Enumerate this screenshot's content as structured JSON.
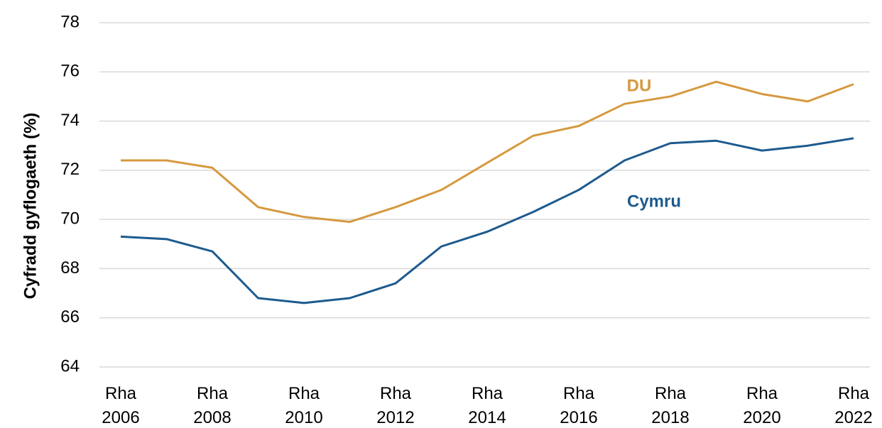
{
  "chart_data": {
    "type": "line",
    "y_label": "Cyfradd gyflogaeth (%)",
    "categories": [
      "Rha 2006",
      null,
      "Rha 2008",
      null,
      "Rha 2010",
      null,
      "Rha 2012",
      null,
      "Rha 2014",
      null,
      "Rha 2016",
      null,
      "Rha 2018",
      null,
      "Rha 2020",
      null,
      "Rha 2022"
    ],
    "series": [
      {
        "name": "DU",
        "color": "#d6993f",
        "values": [
          72.4,
          72.4,
          72.1,
          70.5,
          70.1,
          69.9,
          70.5,
          71.2,
          72.3,
          73.4,
          73.8,
          74.7,
          75.0,
          75.6,
          75.1,
          74.8,
          75.5
        ]
      },
      {
        "name": "Cymru",
        "color": "#1d5a8e",
        "values": [
          69.3,
          69.2,
          68.7,
          66.8,
          66.6,
          66.8,
          67.4,
          68.9,
          69.5,
          70.3,
          71.2,
          72.4,
          73.1,
          73.2,
          72.8,
          73.0,
          73.3
        ]
      }
    ],
    "ylim": [
      64,
      78
    ],
    "yticks": [
      64,
      66,
      68,
      70,
      72,
      74,
      76,
      78
    ],
    "grid": true
  }
}
